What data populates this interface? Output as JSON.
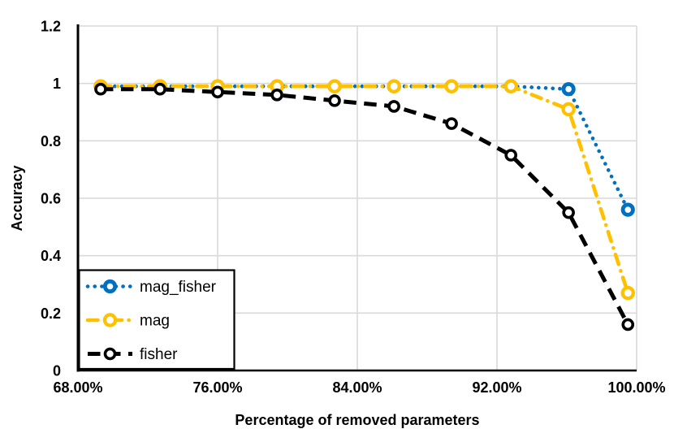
{
  "page": {
    "background": "#FFFFFF"
  },
  "chart_data": {
    "type": "line",
    "title": "",
    "xlabel": "Percentage of removed parameters",
    "ylabel": "Accuracy",
    "xlim": [
      68,
      100
    ],
    "ylim": [
      0,
      1.2
    ],
    "grid": true,
    "legend_position": "bottom-left",
    "colors": {
      "grid": "#D9D9D9",
      "axis": "#000000",
      "text": "#000000",
      "legend_border": "#000000",
      "legend_fill": "#FFFFFF",
      "marker_fill": "#FFFFFF"
    },
    "x_ticks": [
      {
        "value": 68,
        "label": "68.00%"
      },
      {
        "value": 76,
        "label": "76.00%"
      },
      {
        "value": 84,
        "label": "84.00%"
      },
      {
        "value": 92,
        "label": "92.00%"
      },
      {
        "value": 100,
        "label": "100.00%"
      }
    ],
    "y_ticks": [
      {
        "value": 0,
        "label": "0"
      },
      {
        "value": 0.2,
        "label": "0.2"
      },
      {
        "value": 0.4,
        "label": "0.4"
      },
      {
        "value": 0.6,
        "label": "0.6"
      },
      {
        "value": 0.8,
        "label": "0.8"
      },
      {
        "value": 1,
        "label": "1"
      },
      {
        "value": 1.2,
        "label": "1.2"
      }
    ],
    "x": [
      69.3,
      72.7,
      76.0,
      79.4,
      82.7,
      86.1,
      89.4,
      92.8,
      96.1,
      99.5
    ],
    "series": [
      {
        "name": "mag_fisher",
        "color": "#0070C0",
        "line_style": "dotted",
        "marker": "open-circle",
        "values": [
          0.99,
          0.99,
          0.99,
          0.99,
          0.99,
          0.99,
          0.99,
          0.99,
          0.98,
          0.56
        ]
      },
      {
        "name": "mag",
        "color": "#FFC000",
        "line_style": "dash-dot",
        "marker": "open-circle",
        "values": [
          0.99,
          0.99,
          0.99,
          0.99,
          0.99,
          0.99,
          0.99,
          0.99,
          0.91,
          0.27
        ]
      },
      {
        "name": "fisher",
        "color": "#000000",
        "line_style": "dashed",
        "marker": "open-circle",
        "values": [
          0.98,
          0.98,
          0.97,
          0.96,
          0.94,
          0.92,
          0.86,
          0.75,
          0.55,
          0.16
        ]
      }
    ]
  }
}
